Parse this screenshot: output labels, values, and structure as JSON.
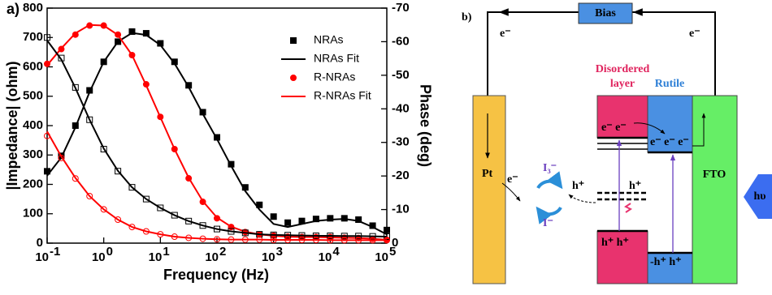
{
  "chart_data": {
    "type": "scatter",
    "panel_label": "a)",
    "x_label": "Frequency (Hz)",
    "y_label": "|Impedance| (ohm)",
    "y2_label": "Phase (deg)",
    "xscale": "log",
    "xlim": [
      0.1,
      100000
    ],
    "xticks": [
      {
        "value": 0.1,
        "label": "10",
        "power": "-1"
      },
      {
        "value": 1,
        "label": "10",
        "power": "0"
      },
      {
        "value": 10,
        "label": "10",
        "power": "1"
      },
      {
        "value": 100,
        "label": "10",
        "power": "2"
      },
      {
        "value": 1000,
        "label": "10",
        "power": "3"
      },
      {
        "value": 10000,
        "label": "10",
        "power": "4"
      },
      {
        "value": 100000,
        "label": "10",
        "power": "5"
      }
    ],
    "ylim": [
      0,
      800
    ],
    "yticks": [
      0,
      100,
      200,
      300,
      400,
      500,
      600,
      700,
      800
    ],
    "y2lim": [
      0,
      -70
    ],
    "y2ticks": [
      0,
      -10,
      -20,
      -30,
      -40,
      -50,
      -60,
      -70
    ],
    "legend": "upper right",
    "x": [
      0.1,
      0.178,
      0.316,
      0.562,
      1,
      1.78,
      3.16,
      5.62,
      10,
      17.8,
      31.6,
      56.2,
      100,
      178,
      316,
      562,
      1000,
      1780,
      3160,
      5620,
      10000,
      17800,
      31600,
      56200,
      100000
    ],
    "series": [
      {
        "name": "NRAs",
        "color": "#000000",
        "marker": "square",
        "filled": true,
        "axis": "y2",
        "values": [
          -21.4,
          -26,
          -35,
          -45.5,
          -54,
          -60,
          -63,
          -62.5,
          -59.5,
          -54,
          -47,
          -39,
          -31.5,
          -23.5,
          -16.6,
          -11.4,
          -7.9,
          -6.1,
          -6.6,
          -7.2,
          -7.4,
          -7.4,
          -7.0,
          -5.2,
          -3.9
        ]
      },
      {
        "name": "NRAs Fit",
        "color": "#000000",
        "marker": "none",
        "axis": "y2",
        "values": [
          -20.1,
          -25.5,
          -34.5,
          -45,
          -54,
          -60,
          -62.6,
          -62,
          -59,
          -53.5,
          -46.5,
          -38.5,
          -31,
          -23,
          -15.5,
          -10,
          -5.7,
          -4.8,
          -5.7,
          -6.6,
          -7.0,
          -7.2,
          -6.6,
          -4.8,
          -2.6
        ]
      },
      {
        "name": "R-NRAs",
        "color": "#ff0000",
        "marker": "circle",
        "filled": true,
        "axis": "y2",
        "values": [
          -53.4,
          -57.8,
          -62.1,
          -64.8,
          -64.8,
          -62.1,
          -56,
          -47.3,
          -37.6,
          -28,
          -19.3,
          -12.3,
          -7.4,
          -4.8,
          -3.3,
          -2.6,
          -2.2,
          -1.9,
          -1.8,
          -1.8,
          -1.8,
          -1.6,
          -1.5,
          -1.3,
          -1.0
        ]
      },
      {
        "name": "R-NRAs Fit",
        "color": "#ff0000",
        "marker": "none",
        "axis": "y2",
        "values": [
          -53,
          -58,
          -62.5,
          -65,
          -64.8,
          -62,
          -56,
          -47,
          -37.5,
          -28,
          -19.5,
          -12.5,
          -7.6,
          -4.9,
          -3.4,
          -2.6,
          -2.2,
          -1.9,
          -1.8,
          -1.8,
          -1.7,
          -1.6,
          -1.5,
          -1.3,
          -1.0
        ]
      },
      {
        "color": "#000000",
        "marker": "square",
        "filled": false,
        "axis": "y",
        "values": [
          700,
          630,
          530,
          420,
          320,
          245,
          190,
          150,
          120,
          95,
          75,
          60,
          48,
          40,
          35,
          30,
          28,
          27,
          26,
          25,
          25,
          24,
          24,
          23,
          22
        ]
      },
      {
        "color": "#000000",
        "marker": "none",
        "axis": "y",
        "values": [
          690,
          625,
          528,
          420,
          322,
          246,
          190,
          150,
          120,
          95,
          75,
          60,
          48,
          40,
          35,
          30,
          28,
          27,
          26,
          25,
          25,
          24,
          24,
          23,
          22
        ]
      },
      {
        "color": "#ff0000",
        "marker": "circle",
        "filled": false,
        "axis": "y",
        "values": [
          365,
          290,
          220,
          160,
          115,
          80,
          55,
          40,
          30,
          22,
          18,
          15,
          13,
          12,
          12,
          12,
          11,
          11,
          11,
          11,
          10,
          10,
          10,
          10,
          10
        ]
      },
      {
        "color": "#ff0000",
        "marker": "none",
        "axis": "y",
        "values": [
          380,
          295,
          222,
          160,
          115,
          80,
          55,
          40,
          30,
          22,
          18,
          15,
          13,
          12,
          12,
          12,
          11,
          11,
          11,
          11,
          10,
          10,
          10,
          10,
          10
        ]
      }
    ]
  },
  "diagram": {
    "panel_label": "b)",
    "bias": "Bias",
    "wire_labels": [
      "e⁻",
      "e⁻"
    ],
    "disordered_layer": [
      "Disordered",
      "layer"
    ],
    "rutile": "Rutile",
    "pt": "Pt",
    "fto": "FTO",
    "pt_electron": "e⁻",
    "redox": [
      "I₃⁻",
      "I⁻"
    ],
    "holes": [
      "h⁺",
      "h⁺",
      "h⁺ h⁺",
      "-h⁺ h⁺"
    ],
    "conduction": [
      "e⁻  e⁻",
      "e⁻ e⁻ e⁻"
    ],
    "light": "hυ"
  }
}
